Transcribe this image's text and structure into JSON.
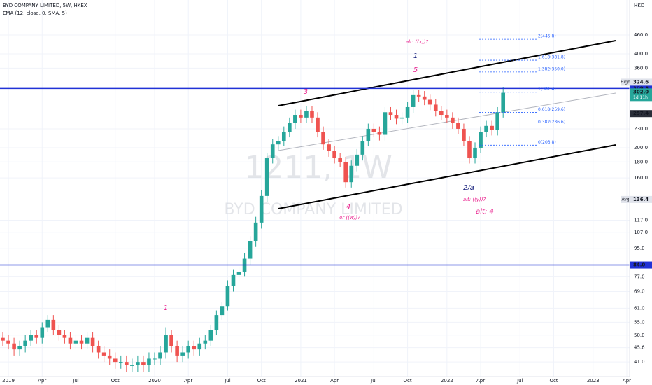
{
  "chart_data": {
    "type": "candlestick",
    "title": "BYD COMPANY LIMITED, 5W, HKEX",
    "subtitle": "EMA (12, close, 0, SMA, 5)",
    "currency": "HKD",
    "watermark_symbol": "1211, 1W",
    "watermark_name": "BYD COMPANY LIMITED",
    "log_scale": true,
    "grid": true,
    "up_color": "#26a69a",
    "down_color": "#ef5350",
    "categories": [
      null,
      "2019",
      null,
      null,
      null,
      null,
      null,
      "Apr",
      null,
      null,
      null,
      null,
      null,
      "Jul",
      null,
      null,
      null,
      null,
      null,
      null,
      "Oct",
      null,
      null,
      null,
      null,
      null,
      null,
      "2020",
      null,
      null,
      null,
      null,
      null,
      "Apr",
      null,
      null,
      null,
      null,
      null,
      null,
      "Jul",
      null,
      null,
      null,
      null,
      null,
      "Oct",
      null,
      null,
      null,
      null,
      null,
      null,
      "2021",
      null,
      null,
      null,
      null,
      null,
      "Apr",
      null,
      null,
      null,
      null,
      null,
      null,
      "Jul",
      null,
      null,
      null,
      null,
      null,
      "Oct",
      null,
      null,
      null,
      null,
      null,
      null,
      "2022",
      null,
      null,
      null,
      null,
      null,
      "Apr",
      null,
      null,
      null,
      null,
      null,
      null,
      "Jul",
      null,
      null,
      null,
      null,
      null,
      "Oct",
      null,
      null,
      null,
      null,
      null,
      null,
      "2023",
      null,
      null,
      null,
      null,
      null,
      "Apr"
    ],
    "open": [
      49,
      48,
      47,
      45,
      46,
      48,
      50,
      49,
      53,
      56,
      52,
      50,
      49,
      47,
      48,
      47,
      49,
      46,
      44,
      43,
      42,
      41,
      41,
      40,
      40,
      41,
      40,
      42,
      42,
      44,
      50,
      46,
      43,
      44,
      46,
      45,
      47,
      48,
      52,
      58,
      62,
      72,
      78,
      80,
      88,
      100,
      115,
      140,
      185,
      205,
      210,
      225,
      240,
      255,
      250,
      262,
      250,
      225,
      205,
      195,
      185,
      180,
      155,
      175,
      190,
      210,
      230,
      225,
      220,
      260,
      255,
      248,
      250,
      270,
      295,
      292,
      285,
      275,
      262,
      255,
      250,
      240,
      230,
      210,
      185,
      200,
      225,
      235,
      228,
      260,
      null,
      null,
      null,
      null,
      null,
      null,
      null,
      null,
      null,
      null,
      null,
      null,
      null,
      null,
      null,
      null,
      null,
      null,
      null,
      null,
      null,
      null
    ],
    "high": [
      51,
      50,
      49,
      48,
      50,
      52,
      52,
      55,
      58,
      58,
      54,
      52,
      51,
      50,
      50,
      51,
      51,
      48,
      46,
      45,
      44,
      43,
      43,
      42,
      43,
      43,
      44,
      44,
      46,
      53,
      52,
      48,
      46,
      48,
      48,
      49,
      50,
      54,
      60,
      64,
      75,
      81,
      83,
      92,
      104,
      120,
      146,
      192,
      213,
      218,
      234,
      250,
      265,
      265,
      272,
      272,
      260,
      234,
      213,
      203,
      192,
      187,
      182,
      198,
      218,
      239,
      239,
      234,
      270,
      270,
      265,
      260,
      281,
      307,
      307,
      304,
      296,
      286,
      272,
      265,
      260,
      250,
      239,
      218,
      208,
      234,
      244,
      244,
      270,
      312,
      null,
      null,
      null,
      null,
      null,
      null,
      null,
      null,
      null,
      null,
      null,
      null,
      null,
      null,
      null,
      null,
      null,
      null,
      null,
      null,
      null,
      null
    ],
    "low": [
      46,
      45,
      43,
      43,
      44,
      46,
      47,
      47,
      51,
      50,
      48,
      47,
      45,
      45,
      45,
      45,
      44,
      42,
      41,
      40,
      39,
      39,
      38,
      38,
      38,
      38,
      38,
      40,
      40,
      42,
      44,
      41,
      41,
      42,
      43,
      43,
      45,
      46,
      50,
      56,
      60,
      69,
      75,
      77,
      84,
      96,
      110,
      134,
      178,
      197,
      202,
      216,
      230,
      240,
      240,
      240,
      216,
      197,
      187,
      178,
      173,
      149,
      149,
      168,
      182,
      202,
      216,
      211,
      211,
      245,
      238,
      238,
      240,
      259,
      280,
      274,
      264,
      252,
      245,
      240,
      230,
      221,
      202,
      178,
      178,
      192,
      216,
      219,
      219,
      250,
      null,
      null,
      null,
      null,
      null,
      null,
      null,
      null,
      null,
      null,
      null,
      null,
      null,
      null,
      null,
      null,
      null,
      null,
      null,
      null,
      null,
      null
    ],
    "close": [
      48,
      47,
      45,
      46,
      48,
      50,
      49,
      53,
      56,
      52,
      50,
      49,
      47,
      48,
      47,
      49,
      46,
      44,
      43,
      42,
      41,
      41,
      40,
      40,
      41,
      40,
      42,
      42,
      44,
      50,
      46,
      43,
      44,
      46,
      45,
      47,
      48,
      52,
      58,
      62,
      72,
      78,
      80,
      88,
      100,
      115,
      140,
      185,
      205,
      210,
      225,
      240,
      255,
      250,
      262,
      250,
      225,
      205,
      195,
      185,
      180,
      155,
      175,
      190,
      210,
      230,
      225,
      220,
      260,
      255,
      248,
      250,
      270,
      295,
      292,
      285,
      275,
      262,
      255,
      250,
      240,
      230,
      210,
      185,
      200,
      225,
      235,
      228,
      260,
      300,
      null,
      null,
      null,
      null,
      null,
      null,
      null,
      null,
      null,
      null,
      null,
      null,
      null,
      null,
      null,
      null,
      null,
      null,
      null,
      null,
      null,
      null
    ],
    "ylim": [
      36.8,
      596
    ],
    "yticks": [
      {
        "value": 460,
        "label": "460.0"
      },
      {
        "value": 400,
        "label": "400.0"
      },
      {
        "value": 360,
        "label": "360.0"
      },
      {
        "value": 230,
        "label": "230.0"
      },
      {
        "value": 200,
        "label": "200.0"
      },
      {
        "value": 180,
        "label": "180.0"
      },
      {
        "value": 160,
        "label": "160.0"
      },
      {
        "value": 117,
        "label": "117.0"
      },
      {
        "value": 107,
        "label": "107.0"
      },
      {
        "value": 95,
        "label": "95.0"
      },
      {
        "value": 77,
        "label": "77.0"
      },
      {
        "value": 69,
        "label": "69.0"
      },
      {
        "value": 61,
        "label": "61.0"
      },
      {
        "value": 55,
        "label": "55.0"
      },
      {
        "value": 50,
        "label": "50.0"
      },
      45.6,
      {
        "value": 41,
        "label": "41.0"
      }
    ],
    "hlines": [
      309.8,
      {
        "value": 84,
        "label": "84.0"
      }
    ],
    "hline_color": "#2132d6",
    "fib_levels": [
      {
        "value": 445.8,
        "label": "2(445.8)"
      },
      {
        "value": 381.8,
        "label": "1.618(381.8)"
      },
      {
        "value": 350,
        "label": "1.382(350.0)"
      },
      {
        "value": 301.4,
        "label": "1(301.4)"
      },
      {
        "value": 259.6,
        "label": "0.618(259.6)"
      },
      {
        "value": 236.6,
        "label": "0.382(236.6)"
      },
      {
        "value": 203.8,
        "label": "0(203.8)"
      }
    ],
    "price_tags": [
      {
        "value": 324.6,
        "label": "324.6",
        "name": "High",
        "color": "#e0e3eb",
        "text_color": "#131722"
      },
      {
        "value": 257.4,
        "label": "257.4",
        "color": "#2a2e39",
        "text_color": "#ffffff"
      },
      {
        "value": 136.4,
        "label": "136.4",
        "name": "Avg",
        "color": "#e0e3eb",
        "text_color": "#131722"
      },
      {
        "value": 302,
        "label": "302.0",
        "sub": "1d 11h",
        "color": "#26a69a",
        "text_color": "#ffffff"
      }
    ],
    "annotations": [
      "alt: ((x))?",
      "1",
      "5",
      "3",
      "4",
      "or ((w))?",
      "2/a",
      "alt: ((y))?",
      "alt: 4",
      "1"
    ]
  }
}
